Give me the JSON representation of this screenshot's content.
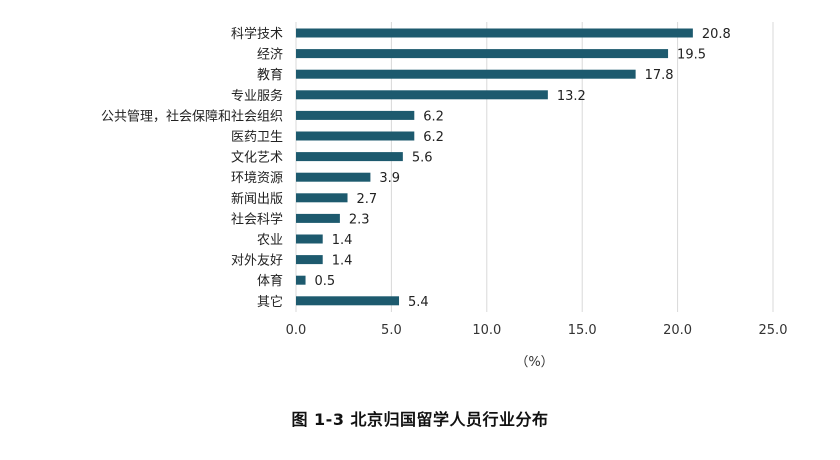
{
  "figure": {
    "caption": "图 1-3   北京归国留学人员行业分布"
  },
  "chart_data": {
    "type": "bar",
    "orientation": "horizontal",
    "title": "",
    "categories": [
      "科学技术",
      "经济",
      "教育",
      "专业服务",
      "公共管理，社会保障和社会组织",
      "医药卫生",
      "文化艺术",
      "环境资源",
      "新闻出版",
      "社会科学",
      "农业",
      "对外友好",
      "体育",
      "其它"
    ],
    "values": [
      20.8,
      19.5,
      17.8,
      13.2,
      6.2,
      6.2,
      5.6,
      3.9,
      2.7,
      2.3,
      1.4,
      1.4,
      0.5,
      5.4
    ],
    "value_labels": [
      "20.8",
      "19.5",
      "17.8",
      "13.2",
      "6.2",
      "6.2",
      "5.6",
      "3.9",
      "2.7",
      "2.3",
      "1.4",
      "1.4",
      "0.5",
      "5.4"
    ],
    "xlim": [
      0,
      25
    ],
    "xticks": [
      "0.0",
      "5.0",
      "10.0",
      "15.0",
      "20.0",
      "25.0"
    ],
    "xtick_values": [
      0,
      5,
      10,
      15,
      20,
      25
    ],
    "xlabel": "（%）",
    "ylabel": "",
    "grid": "vertical",
    "legend": "none",
    "colors": {
      "bar": "#1d5a6e",
      "grid": "#d9d9d9",
      "text": "#222222"
    }
  }
}
